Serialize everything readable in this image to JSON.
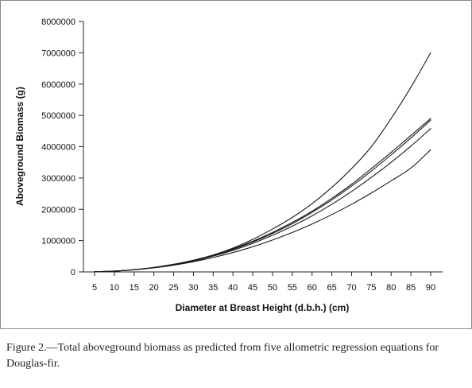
{
  "caption": "Figure 2.—Total aboveground biomass as predicted from five allometric regression equations for Douglas-fir.",
  "colors": {
    "line": "#1a1a1a",
    "axis": "#222222",
    "border": "#8a8a8a"
  },
  "chart_data": {
    "type": "line",
    "title": "",
    "xlabel": "Diameter at Breast Height (d.b.h.) (cm)",
    "ylabel": "Aboveground Biomass (g)",
    "xlim": [
      5,
      90
    ],
    "ylim": [
      0,
      8000000
    ],
    "x": [
      5,
      10,
      15,
      20,
      25,
      30,
      35,
      40,
      45,
      50,
      55,
      60,
      65,
      70,
      75,
      80,
      85,
      90
    ],
    "x_tick_labels": [
      "5",
      "10",
      "15",
      "20",
      "25",
      "30",
      "35",
      "40",
      "45",
      "50",
      "55",
      "60",
      "65",
      "70",
      "75",
      "80",
      "85",
      "90"
    ],
    "y_ticks": [
      0,
      1000000,
      2000000,
      3000000,
      4000000,
      5000000,
      6000000,
      7000000,
      8000000
    ],
    "y_tick_labels": [
      "0",
      "1000000",
      "2000000",
      "3000000",
      "4000000",
      "5000000",
      "6000000",
      "7000000",
      "8000000"
    ],
    "grid": false,
    "legend": "none",
    "series": [
      {
        "values": [
          4000,
          25000,
          70000,
          140000,
          240000,
          370000,
          540000,
          760000,
          1040000,
          1370000,
          1740000,
          2180000,
          2700000,
          3300000,
          4000000,
          4900000,
          5900000,
          7000000
        ]
      },
      {
        "values": [
          5000,
          27000,
          75000,
          145000,
          245000,
          375000,
          540000,
          740000,
          980000,
          1260000,
          1580000,
          1940000,
          2350000,
          2800000,
          3300000,
          3820000,
          4360000,
          4900000
        ]
      },
      {
        "values": [
          5000,
          26000,
          72000,
          140000,
          238000,
          365000,
          525000,
          720000,
          955000,
          1230000,
          1540000,
          1900000,
          2300000,
          2740000,
          3220000,
          3740000,
          4280000,
          4850000
        ]
      },
      {
        "values": [
          5000,
          26000,
          70000,
          135000,
          228000,
          350000,
          505000,
          690000,
          910000,
          1170000,
          1460000,
          1790000,
          2160000,
          2570000,
          3020000,
          3500000,
          4020000,
          4580000
        ]
      },
      {
        "values": [
          5000,
          25000,
          68000,
          130000,
          215000,
          325000,
          460000,
          620000,
          805000,
          1020000,
          1260000,
          1530000,
          1830000,
          2160000,
          2520000,
          2910000,
          3320000,
          3900000
        ]
      }
    ]
  }
}
